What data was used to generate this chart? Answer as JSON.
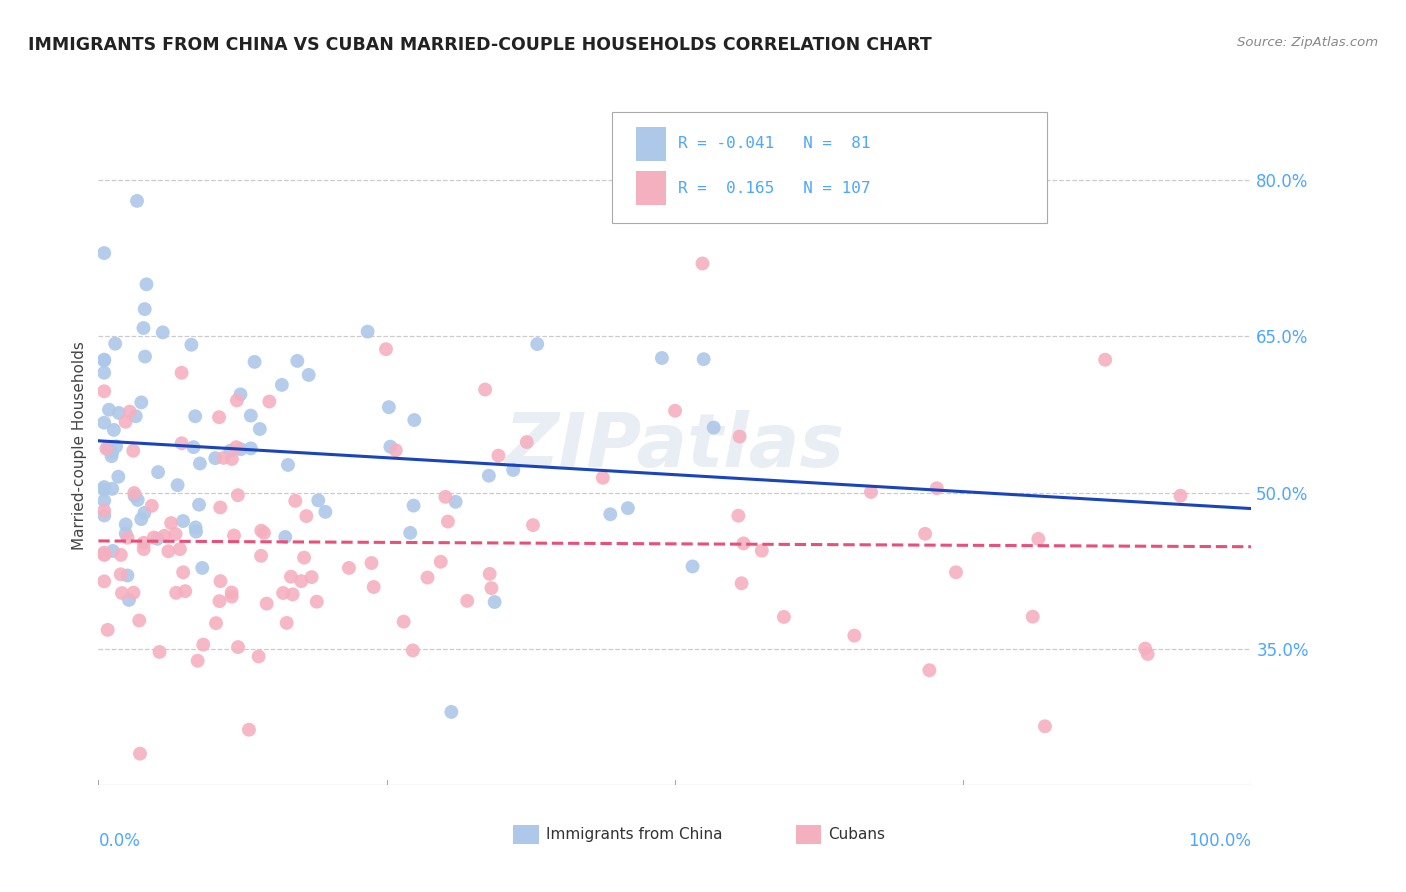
{
  "title": "IMMIGRANTS FROM CHINA VS CUBAN MARRIED-COUPLE HOUSEHOLDS CORRELATION CHART",
  "source": "Source: ZipAtlas.com",
  "ylabel": "Married-couple Households",
  "color_china": "#adc8e8",
  "color_cuba": "#f5b0c0",
  "color_blue_text": "#4da6ff",
  "color_line_china": "#1a44bb",
  "color_line_cuba": "#e8507a",
  "background": "#ffffff",
  "grid_color": "#cccccc",
  "watermark": "ZIPatlas",
  "china_scatter_seed": 99,
  "cuba_scatter_seed": 55,
  "n_china": 81,
  "n_cuba": 107,
  "y_min": 22,
  "y_max": 87,
  "x_min": 0,
  "x_max": 100
}
